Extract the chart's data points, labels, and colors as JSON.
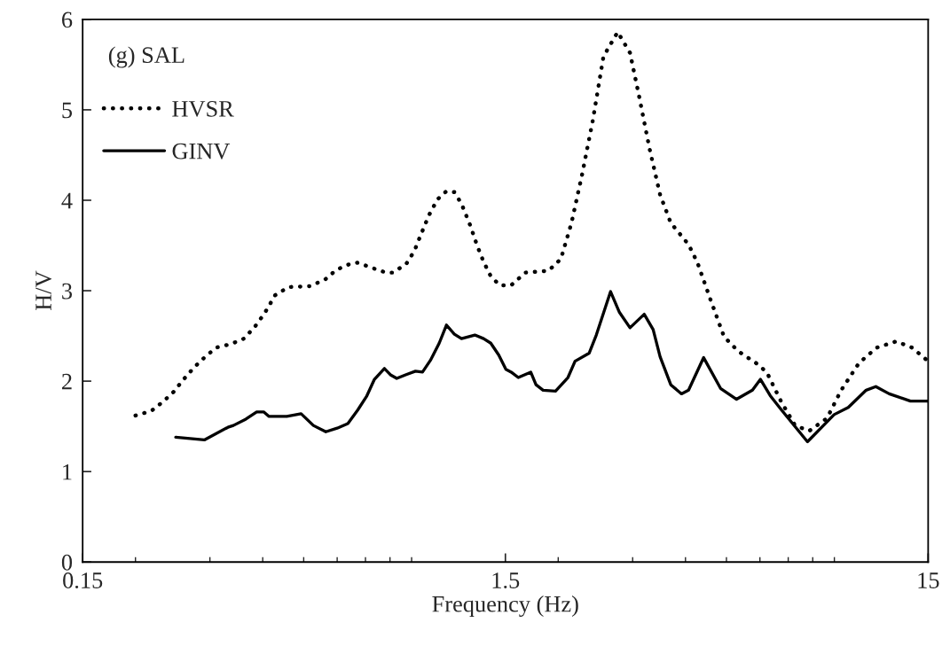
{
  "chart_data": {
    "type": "line",
    "xlabel": "Frequency (Hz)",
    "ylabel": "H/V",
    "annotations": [
      "(g) SAL"
    ],
    "log": "x",
    "xlim": [
      0.15,
      15
    ],
    "xticks": [
      0.15,
      1.5,
      15
    ],
    "ylim": [
      0,
      6
    ],
    "yticks": [
      0,
      1,
      2,
      3,
      4,
      5,
      6
    ],
    "grid": false,
    "legend": "top left",
    "marker": "none",
    "series": [
      {
        "name": "HVSR",
        "color": "#000000",
        "line_style": "dotted",
        "x": [
          0.2,
          0.218,
          0.232,
          0.246,
          0.26,
          0.275,
          0.291,
          0.31,
          0.336,
          0.361,
          0.383,
          0.404,
          0.428,
          0.46,
          0.519,
          0.564,
          0.597,
          0.646,
          0.671,
          0.728,
          0.783,
          0.814,
          0.875,
          0.914,
          0.941,
          0.988,
          1.036,
          1.088,
          1.136,
          1.181,
          1.239,
          1.288,
          1.332,
          1.385,
          1.454,
          1.548,
          1.672,
          1.896,
          2.029,
          2.15,
          2.279,
          2.414,
          2.559,
          2.765,
          2.957,
          3.104,
          3.289,
          3.484,
          3.692,
          4.068,
          4.27,
          4.569,
          4.936,
          5.333,
          5.874,
          6.225,
          6.725,
          7.265,
          7.85,
          8.646,
          9.342,
          10.29,
          11.33,
          12.61,
          13.75,
          15
        ],
        "values": [
          1.62,
          1.67,
          1.77,
          1.88,
          2.02,
          2.15,
          2.26,
          2.37,
          2.41,
          2.47,
          2.6,
          2.75,
          2.95,
          3.04,
          3.05,
          3.13,
          3.23,
          3.3,
          3.31,
          3.25,
          3.2,
          3.2,
          3.3,
          3.44,
          3.59,
          3.83,
          4.01,
          4.1,
          4.09,
          3.96,
          3.72,
          3.49,
          3.32,
          3.16,
          3.06,
          3.06,
          3.2,
          3.22,
          3.35,
          3.75,
          4.29,
          4.88,
          5.59,
          5.86,
          5.63,
          5.16,
          4.57,
          4.06,
          3.75,
          3.51,
          3.31,
          2.92,
          2.49,
          2.33,
          2.2,
          2.1,
          1.78,
          1.51,
          1.45,
          1.59,
          1.9,
          2.2,
          2.37,
          2.44,
          2.37,
          2.22
        ]
      },
      {
        "name": "GINV",
        "color": "#000000",
        "line_style": "solid",
        "x": [
          0.249,
          0.291,
          0.331,
          0.341,
          0.365,
          0.387,
          0.402,
          0.414,
          0.456,
          0.493,
          0.527,
          0.564,
          0.6,
          0.636,
          0.671,
          0.704,
          0.735,
          0.776,
          0.802,
          0.83,
          0.871,
          0.919,
          0.955,
          0.997,
          1.046,
          1.088,
          1.136,
          1.181,
          1.27,
          1.332,
          1.385,
          1.446,
          1.504,
          1.548,
          1.609,
          1.722,
          1.772,
          1.842,
          1.971,
          2.109,
          2.192,
          2.368,
          2.461,
          2.66,
          2.792,
          2.957,
          3.195,
          3.354,
          3.484,
          3.692,
          3.914,
          4.068,
          4.416,
          4.842,
          5.283,
          5.761,
          6.018,
          6.346,
          6.725,
          7.774,
          8.987,
          9.71,
          10.7,
          11.28,
          12.13,
          13.62,
          15
        ],
        "values": [
          1.38,
          1.35,
          1.49,
          1.51,
          1.58,
          1.66,
          1.66,
          1.61,
          1.61,
          1.64,
          1.51,
          1.44,
          1.48,
          1.53,
          1.68,
          1.83,
          2.02,
          2.14,
          2.07,
          2.03,
          2.07,
          2.11,
          2.1,
          2.23,
          2.42,
          2.62,
          2.52,
          2.47,
          2.51,
          2.47,
          2.42,
          2.29,
          2.13,
          2.1,
          2.04,
          2.1,
          1.96,
          1.9,
          1.89,
          2.04,
          2.22,
          2.31,
          2.51,
          2.99,
          2.76,
          2.59,
          2.74,
          2.57,
          2.27,
          1.96,
          1.86,
          1.9,
          2.26,
          1.92,
          1.8,
          1.9,
          2.02,
          1.84,
          1.69,
          1.33,
          1.63,
          1.71,
          1.9,
          1.94,
          1.86,
          1.78,
          1.78
        ]
      }
    ]
  }
}
